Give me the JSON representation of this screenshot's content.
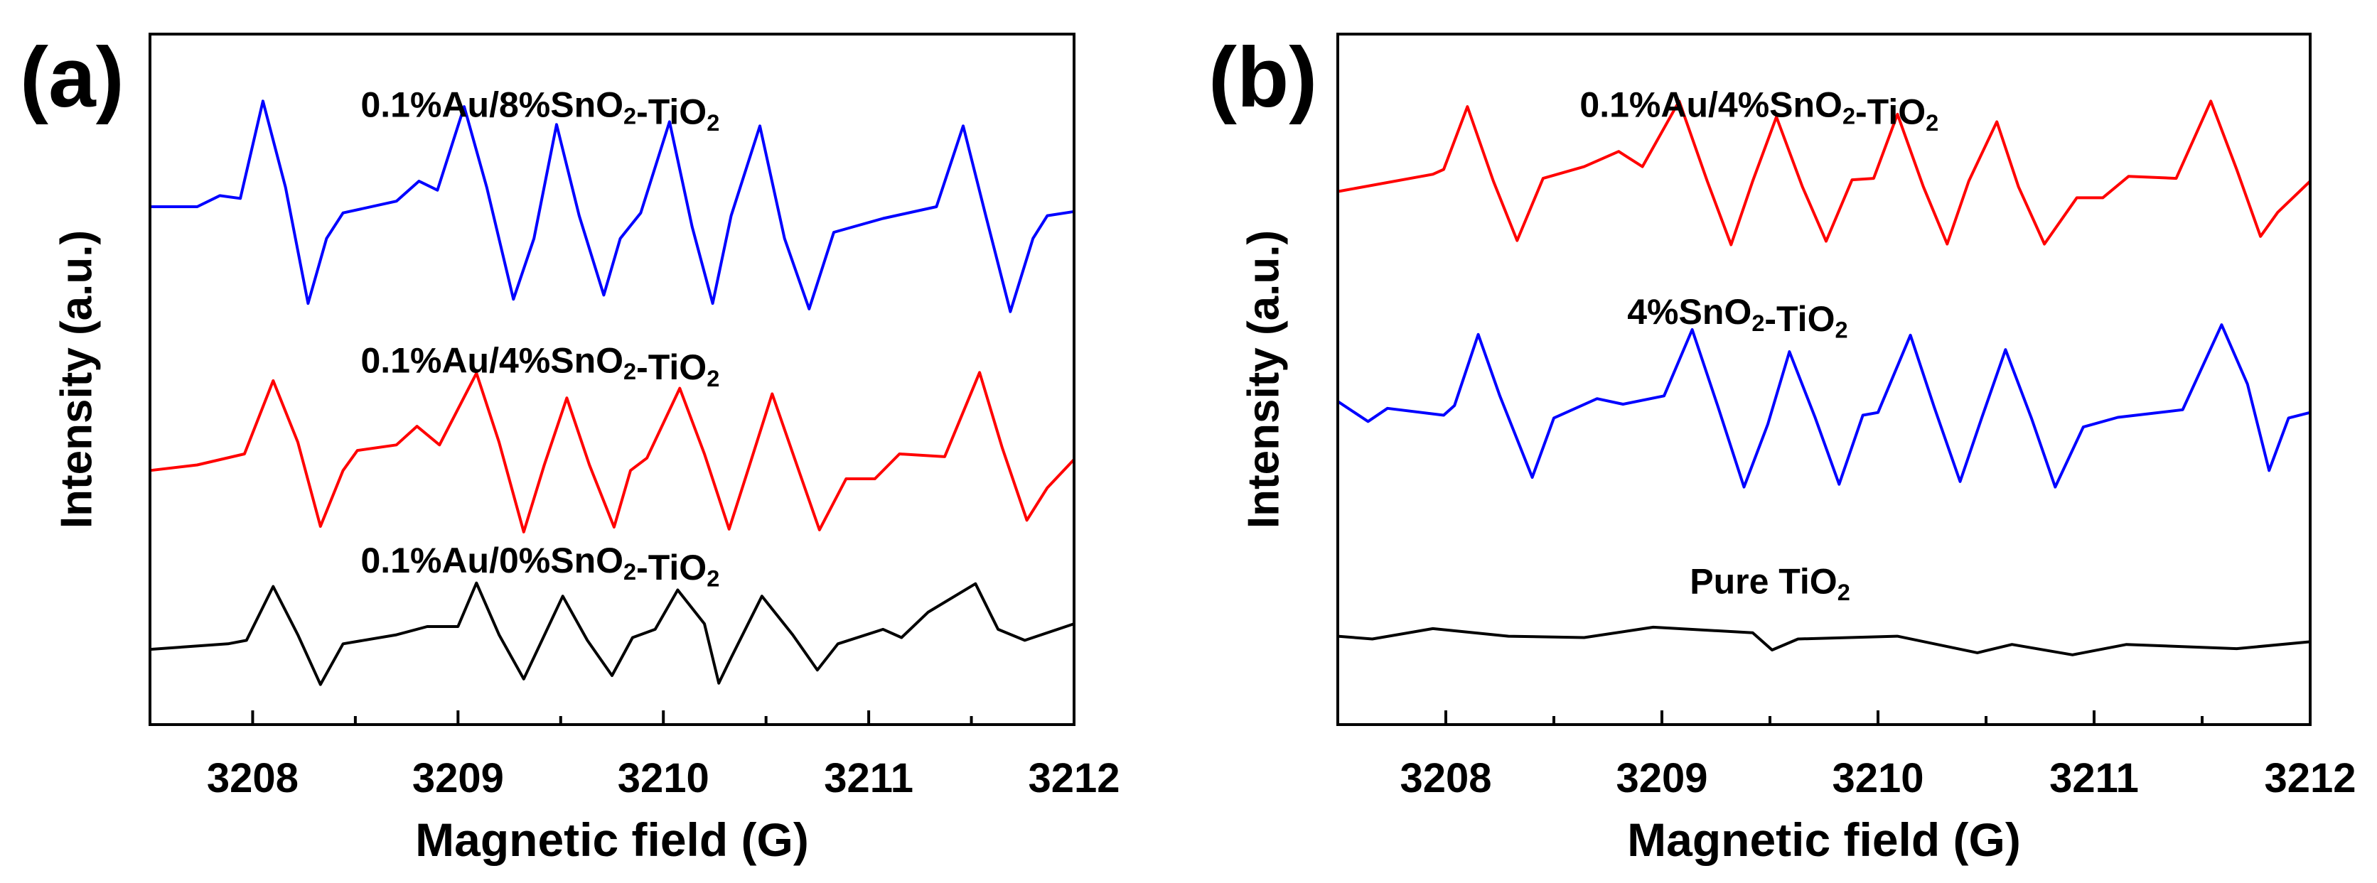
{
  "chart_data": [
    {
      "panel_label": "(a)",
      "type": "line",
      "xlabel": "Magnetic field (G)",
      "ylabel": "Intensity (a.u.)",
      "xlim": [
        3207.5,
        3212
      ],
      "ylim": [
        0,
        100
      ],
      "xticks": [
        "3208",
        "3209",
        "3210",
        "3211",
        "3212"
      ],
      "xtick_values": [
        3208,
        3209,
        3210,
        3211,
        3212
      ],
      "minor_xtick_values": [
        3208.5,
        3209.5,
        3210.5,
        3211.5
      ],
      "grid": false,
      "series": [
        {
          "name": "0.1%Au/8%SnO2-TiO2",
          "color": "#0000ff",
          "label_x": 3209.4,
          "label_y": 88,
          "points": [
            [
              3207.5,
              75.0
            ],
            [
              3207.73,
              75.0
            ],
            [
              3207.84,
              76.6
            ],
            [
              3207.94,
              76.2
            ],
            [
              3208.05,
              90.3
            ],
            [
              3208.16,
              77.8
            ],
            [
              3208.27,
              61.0
            ],
            [
              3208.36,
              70.4
            ],
            [
              3208.44,
              74.1
            ],
            [
              3208.7,
              75.8
            ],
            [
              3208.81,
              78.7
            ],
            [
              3208.9,
              77.4
            ],
            [
              3209.03,
              89.5
            ],
            [
              3209.14,
              77.8
            ],
            [
              3209.27,
              61.6
            ],
            [
              3209.37,
              70.4
            ],
            [
              3209.48,
              86.9
            ],
            [
              3209.59,
              73.7
            ],
            [
              3209.71,
              62.2
            ],
            [
              3209.79,
              70.4
            ],
            [
              3209.89,
              74.1
            ],
            [
              3210.03,
              87.3
            ],
            [
              3210.14,
              72.1
            ],
            [
              3210.24,
              61.0
            ],
            [
              3210.33,
              73.7
            ],
            [
              3210.47,
              86.7
            ],
            [
              3210.59,
              70.4
            ],
            [
              3210.71,
              60.2
            ],
            [
              3210.83,
              71.3
            ],
            [
              3211.07,
              73.3
            ],
            [
              3211.33,
              75.0
            ],
            [
              3211.46,
              86.7
            ],
            [
              3211.57,
              73.7
            ],
            [
              3211.69,
              59.8
            ],
            [
              3211.8,
              70.4
            ],
            [
              3211.87,
              73.7
            ],
            [
              3212.0,
              74.3
            ]
          ]
        },
        {
          "name": "0.1%Au/4%SnO2-TiO2",
          "color": "#ff0000",
          "label_x": 3209.4,
          "label_y": 51,
          "points": [
            [
              3207.5,
              36.8
            ],
            [
              3207.73,
              37.6
            ],
            [
              3207.96,
              39.2
            ],
            [
              3208.1,
              49.8
            ],
            [
              3208.22,
              40.9
            ],
            [
              3208.33,
              28.7
            ],
            [
              3208.44,
              36.8
            ],
            [
              3208.51,
              39.7
            ],
            [
              3208.7,
              40.5
            ],
            [
              3208.8,
              43.2
            ],
            [
              3208.91,
              40.5
            ],
            [
              3209.09,
              50.9
            ],
            [
              3209.2,
              40.9
            ],
            [
              3209.32,
              27.9
            ],
            [
              3209.42,
              37.6
            ],
            [
              3209.53,
              47.3
            ],
            [
              3209.64,
              37.6
            ],
            [
              3209.76,
              28.6
            ],
            [
              3209.84,
              36.8
            ],
            [
              3209.92,
              38.6
            ],
            [
              3210.08,
              48.7
            ],
            [
              3210.2,
              39.2
            ],
            [
              3210.32,
              28.3
            ],
            [
              3210.42,
              37.6
            ],
            [
              3210.53,
              47.9
            ],
            [
              3210.65,
              37.6
            ],
            [
              3210.76,
              28.2
            ],
            [
              3210.89,
              35.6
            ],
            [
              3211.03,
              35.6
            ],
            [
              3211.15,
              39.2
            ],
            [
              3211.37,
              38.8
            ],
            [
              3211.54,
              51.0
            ],
            [
              3211.65,
              40.1
            ],
            [
              3211.77,
              29.6
            ],
            [
              3211.87,
              34.3
            ],
            [
              3212.0,
              38.4
            ]
          ]
        },
        {
          "name": "0.1%Au/0%SnO2-TiO2",
          "color": "#000000",
          "label_x": 3209.4,
          "label_y": 22,
          "points": [
            [
              3207.5,
              10.9
            ],
            [
              3207.88,
              11.7
            ],
            [
              3207.97,
              12.2
            ],
            [
              3208.1,
              20.0
            ],
            [
              3208.22,
              13.0
            ],
            [
              3208.33,
              5.8
            ],
            [
              3208.44,
              11.7
            ],
            [
              3208.7,
              13.0
            ],
            [
              3208.85,
              14.2
            ],
            [
              3209.0,
              14.2
            ],
            [
              3209.09,
              20.5
            ],
            [
              3209.2,
              13.0
            ],
            [
              3209.32,
              6.6
            ],
            [
              3209.51,
              18.6
            ],
            [
              3209.63,
              12.2
            ],
            [
              3209.75,
              7.1
            ],
            [
              3209.85,
              12.6
            ],
            [
              3209.96,
              13.8
            ],
            [
              3210.07,
              19.5
            ],
            [
              3210.2,
              14.6
            ],
            [
              3210.27,
              6.0
            ],
            [
              3210.33,
              9.7
            ],
            [
              3210.48,
              18.6
            ],
            [
              3210.63,
              13.0
            ],
            [
              3210.75,
              7.9
            ],
            [
              3210.85,
              11.7
            ],
            [
              3211.07,
              13.8
            ],
            [
              3211.16,
              12.6
            ],
            [
              3211.29,
              16.3
            ],
            [
              3211.52,
              20.4
            ],
            [
              3211.63,
              13.8
            ],
            [
              3211.76,
              12.2
            ],
            [
              3212.0,
              14.6
            ]
          ]
        }
      ]
    },
    {
      "panel_label": "(b)",
      "type": "line",
      "xlabel": "Magnetic field (G)",
      "ylabel": "Intensity (a.u.)",
      "xlim": [
        3207.5,
        3212
      ],
      "ylim": [
        0,
        100
      ],
      "xticks": [
        "3208",
        "3209",
        "3210",
        "3211",
        "3212"
      ],
      "xtick_values": [
        3208,
        3209,
        3210,
        3211,
        3212
      ],
      "minor_xtick_values": [
        3208.5,
        3209.5,
        3210.5,
        3211.5
      ],
      "grid": false,
      "series": [
        {
          "name": "0.1%Au/4%SnO2-TiO2",
          "color": "#ff0000",
          "label_x": 3209.45,
          "label_y": 88,
          "points": [
            [
              3207.5,
              77.2
            ],
            [
              3207.94,
              79.7
            ],
            [
              3207.99,
              80.4
            ],
            [
              3208.1,
              89.5
            ],
            [
              3208.22,
              78.7
            ],
            [
              3208.33,
              70.1
            ],
            [
              3208.45,
              79.1
            ],
            [
              3208.64,
              80.8
            ],
            [
              3208.8,
              83.0
            ],
            [
              3208.91,
              80.8
            ],
            [
              3209.08,
              90.3
            ],
            [
              3209.21,
              78.7
            ],
            [
              3209.32,
              69.5
            ],
            [
              3209.42,
              78.7
            ],
            [
              3209.53,
              88.0
            ],
            [
              3209.65,
              77.9
            ],
            [
              3209.76,
              70.0
            ],
            [
              3209.88,
              78.9
            ],
            [
              3209.98,
              79.1
            ],
            [
              3210.09,
              88.4
            ],
            [
              3210.21,
              77.9
            ],
            [
              3210.32,
              69.6
            ],
            [
              3210.42,
              78.7
            ],
            [
              3210.55,
              87.3
            ],
            [
              3210.65,
              77.9
            ],
            [
              3210.77,
              69.6
            ],
            [
              3210.92,
              76.3
            ],
            [
              3211.04,
              76.3
            ],
            [
              3211.16,
              79.4
            ],
            [
              3211.38,
              79.1
            ],
            [
              3211.54,
              90.3
            ],
            [
              3211.66,
              80.4
            ],
            [
              3211.77,
              70.7
            ],
            [
              3211.85,
              74.2
            ],
            [
              3212.0,
              78.7
            ]
          ]
        },
        {
          "name": "4%SnO2-TiO2",
          "color": "#0000ff",
          "label_x": 3209.35,
          "label_y": 58,
          "points": [
            [
              3207.5,
              46.8
            ],
            [
              3207.64,
              43.9
            ],
            [
              3207.73,
              45.8
            ],
            [
              3207.99,
              44.8
            ],
            [
              3208.04,
              46.2
            ],
            [
              3208.15,
              56.5
            ],
            [
              3208.25,
              47.6
            ],
            [
              3208.4,
              35.8
            ],
            [
              3208.5,
              44.4
            ],
            [
              3208.7,
              47.2
            ],
            [
              3208.82,
              46.4
            ],
            [
              3209.01,
              47.6
            ],
            [
              3209.14,
              57.2
            ],
            [
              3209.26,
              46.0
            ],
            [
              3209.38,
              34.4
            ],
            [
              3209.49,
              43.5
            ],
            [
              3209.59,
              54.0
            ],
            [
              3209.71,
              44.4
            ],
            [
              3209.82,
              34.8
            ],
            [
              3209.93,
              44.8
            ],
            [
              3210.0,
              45.2
            ],
            [
              3210.15,
              56.4
            ],
            [
              3210.26,
              46.0
            ],
            [
              3210.38,
              35.2
            ],
            [
              3210.48,
              44.4
            ],
            [
              3210.59,
              54.3
            ],
            [
              3210.71,
              44.4
            ],
            [
              3210.82,
              34.4
            ],
            [
              3210.95,
              43.1
            ],
            [
              3211.11,
              44.5
            ],
            [
              3211.41,
              45.6
            ],
            [
              3211.59,
              57.9
            ],
            [
              3211.71,
              49.3
            ],
            [
              3211.81,
              36.8
            ],
            [
              3211.9,
              44.4
            ],
            [
              3212.0,
              45.2
            ]
          ]
        },
        {
          "name": "Pure TiO2",
          "color": "#000000",
          "label_x": 3209.5,
          "label_y": 19,
          "points": [
            [
              3207.5,
              12.8
            ],
            [
              3207.66,
              12.4
            ],
            [
              3207.94,
              13.9
            ],
            [
              3208.29,
              12.8
            ],
            [
              3208.64,
              12.6
            ],
            [
              3208.96,
              14.1
            ],
            [
              3209.42,
              13.3
            ],
            [
              3209.51,
              10.8
            ],
            [
              3209.63,
              12.4
            ],
            [
              3210.09,
              12.8
            ],
            [
              3210.46,
              10.4
            ],
            [
              3210.62,
              11.6
            ],
            [
              3210.9,
              10.1
            ],
            [
              3211.15,
              11.6
            ],
            [
              3211.66,
              11.0
            ],
            [
              3212.0,
              12.0
            ]
          ]
        }
      ]
    }
  ]
}
